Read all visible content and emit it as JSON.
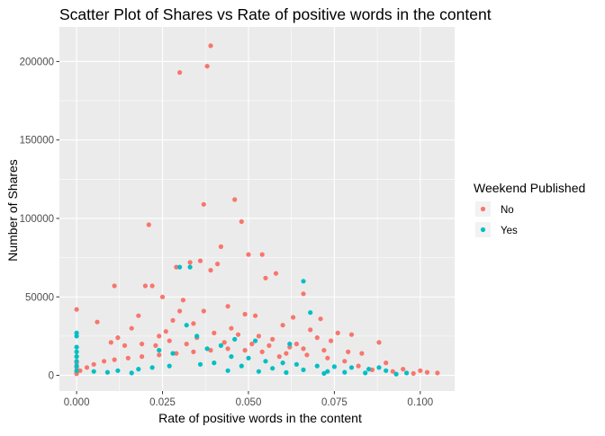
{
  "chart_data": {
    "type": "scatter",
    "title": "Scatter Plot of Shares vs Rate of positive words in the content",
    "xlabel": "Rate of positive words in the content",
    "ylabel": "Number of Shares",
    "xlim": [
      -0.005,
      0.11
    ],
    "ylim": [
      -10000,
      222000
    ],
    "x_ticks": [
      0.0,
      0.025,
      0.05,
      0.075,
      0.1
    ],
    "x_tick_labels": [
      "0.000",
      "0.025",
      "0.050",
      "0.075",
      "0.100"
    ],
    "y_ticks": [
      0,
      50000,
      100000,
      150000,
      200000
    ],
    "y_tick_labels": [
      "0",
      "50000",
      "100000",
      "150000",
      "200000"
    ],
    "grid": true,
    "background": "#EBEBEB",
    "legend": {
      "title": "Weekend Published",
      "placement": "right",
      "entries": [
        {
          "label": "No",
          "color": "#F8766D"
        },
        {
          "label": "Yes",
          "color": "#00BFC4"
        }
      ]
    },
    "series": [
      {
        "name": "No",
        "color": "#F8766D",
        "points": [
          [
            0.039,
            210000
          ],
          [
            0.03,
            193000
          ],
          [
            0.038,
            197000
          ],
          [
            0.046,
            112000
          ],
          [
            0.037,
            109000
          ],
          [
            0.021,
            96000
          ],
          [
            0.048,
            98000
          ],
          [
            0.042,
            82000
          ],
          [
            0.05,
            77000
          ],
          [
            0.054,
            77000
          ],
          [
            0.036,
            73000
          ],
          [
            0.033,
            72000
          ],
          [
            0.041,
            71000
          ],
          [
            0.029,
            69000
          ],
          [
            0.039,
            67000
          ],
          [
            0.058,
            65000
          ],
          [
            0.055,
            62000
          ],
          [
            0.011,
            57000
          ],
          [
            0.02,
            57000
          ],
          [
            0.022,
            57000
          ],
          [
            0.066,
            52000
          ],
          [
            0.025,
            50000
          ],
          [
            0.031,
            48000
          ],
          [
            0.0,
            42000
          ],
          [
            0.044,
            44000
          ],
          [
            0.006,
            34000
          ],
          [
            0.03,
            41000
          ],
          [
            0.037,
            41000
          ],
          [
            0.049,
            39000
          ],
          [
            0.052,
            38000
          ],
          [
            0.063,
            37000
          ],
          [
            0.071,
            36000
          ],
          [
            0.076,
            27000
          ],
          [
            0.08,
            26000
          ],
          [
            0.088,
            21000
          ],
          [
            0.018,
            38000
          ],
          [
            0.016,
            30000
          ],
          [
            0.024,
            25000
          ],
          [
            0.028,
            35000
          ],
          [
            0.034,
            33000
          ],
          [
            0.045,
            30000
          ],
          [
            0.06,
            32000
          ],
          [
            0.068,
            29000
          ],
          [
            0.07,
            24000
          ],
          [
            0.074,
            22000
          ],
          [
            0.012,
            24000
          ],
          [
            0.026,
            28000
          ],
          [
            0.04,
            27000
          ],
          [
            0.047,
            26000
          ],
          [
            0.053,
            25000
          ],
          [
            0.057,
            23000
          ],
          [
            0.064,
            20000
          ],
          [
            0.01,
            21000
          ],
          [
            0.014,
            19000
          ],
          [
            0.019,
            20000
          ],
          [
            0.023,
            19000
          ],
          [
            0.027,
            22000
          ],
          [
            0.032,
            20000
          ],
          [
            0.035,
            24000
          ],
          [
            0.043,
            21000
          ],
          [
            0.051,
            20000
          ],
          [
            0.056,
            19000
          ],
          [
            0.062,
            18000
          ],
          [
            0.066,
            17000
          ],
          [
            0.072,
            16000
          ],
          [
            0.079,
            15000
          ],
          [
            0.083,
            14000
          ],
          [
            0.09,
            8000
          ],
          [
            0.095,
            4000
          ],
          [
            0.1,
            3000
          ],
          [
            0.102,
            2000
          ],
          [
            0.105,
            1500
          ],
          [
            0.098,
            1200
          ],
          [
            0.092,
            2500
          ],
          [
            0.086,
            3500
          ],
          [
            0.082,
            6000
          ],
          [
            0.078,
            9000
          ],
          [
            0.073,
            11000
          ],
          [
            0.067,
            13000
          ],
          [
            0.061,
            14000
          ],
          [
            0.059,
            12000
          ],
          [
            0.054,
            15000
          ],
          [
            0.049,
            16000
          ],
          [
            0.044,
            17000
          ],
          [
            0.039,
            16000
          ],
          [
            0.034,
            15000
          ],
          [
            0.029,
            14000
          ],
          [
            0.024,
            13000
          ],
          [
            0.019,
            12000
          ],
          [
            0.015,
            11000
          ],
          [
            0.011,
            10000
          ],
          [
            0.008,
            9000
          ],
          [
            0.005,
            7000
          ],
          [
            0.003,
            5000
          ],
          [
            0.001,
            3000
          ],
          [
            0.0,
            12000
          ],
          [
            0.0,
            8000
          ],
          [
            0.0,
            5000
          ],
          [
            0.0,
            2000
          ],
          [
            0.0,
            1000
          ]
        ]
      },
      {
        "name": "Yes",
        "color": "#00BFC4",
        "points": [
          [
            0.0,
            27000
          ],
          [
            0.0,
            25000
          ],
          [
            0.0,
            18000
          ],
          [
            0.0,
            15000
          ],
          [
            0.0,
            12000
          ],
          [
            0.0,
            9000
          ],
          [
            0.0,
            6000
          ],
          [
            0.0,
            3000
          ],
          [
            0.03,
            69000
          ],
          [
            0.033,
            69000
          ],
          [
            0.066,
            60000
          ],
          [
            0.068,
            40000
          ],
          [
            0.032,
            32000
          ],
          [
            0.035,
            25000
          ],
          [
            0.046,
            23000
          ],
          [
            0.052,
            22000
          ],
          [
            0.062,
            20000
          ],
          [
            0.042,
            19000
          ],
          [
            0.038,
            17000
          ],
          [
            0.024,
            16000
          ],
          [
            0.028,
            14000
          ],
          [
            0.045,
            12000
          ],
          [
            0.05,
            11000
          ],
          [
            0.055,
            9000
          ],
          [
            0.06,
            8000
          ],
          [
            0.064,
            7000
          ],
          [
            0.07,
            6000
          ],
          [
            0.075,
            5500
          ],
          [
            0.08,
            5000
          ],
          [
            0.085,
            4000
          ],
          [
            0.09,
            3000
          ],
          [
            0.096,
            1500
          ],
          [
            0.005,
            2500
          ],
          [
            0.012,
            3000
          ],
          [
            0.018,
            4000
          ],
          [
            0.022,
            5000
          ],
          [
            0.027,
            6000
          ],
          [
            0.036,
            7000
          ],
          [
            0.04,
            8000
          ],
          [
            0.048,
            6000
          ],
          [
            0.057,
            4500
          ],
          [
            0.066,
            3500
          ],
          [
            0.073,
            2500
          ],
          [
            0.078,
            2000
          ],
          [
            0.084,
            1500
          ],
          [
            0.088,
            5000
          ],
          [
            0.093,
            800
          ],
          [
            0.016,
            1500
          ],
          [
            0.009,
            2000
          ],
          [
            0.044,
            3000
          ],
          [
            0.053,
            2500
          ],
          [
            0.061,
            1800
          ],
          [
            0.072,
            1200
          ]
        ]
      }
    ]
  }
}
